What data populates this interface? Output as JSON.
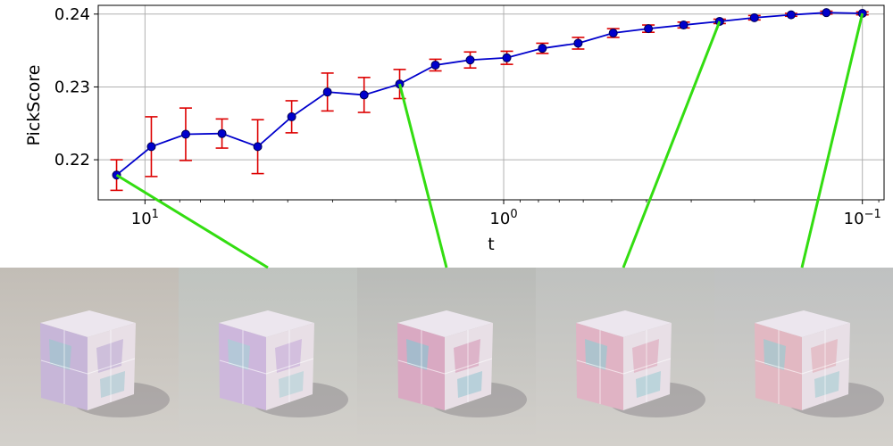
{
  "chart_data": {
    "type": "line",
    "title": "",
    "xlabel": "t",
    "ylabel": "PickScore",
    "x_scale": "log",
    "x_reversed": true,
    "xlim": [
      13.5,
      0.087
    ],
    "ylim": [
      0.2145,
      0.2412
    ],
    "grid": true,
    "x_ticks": [
      {
        "value": 10,
        "base": "10",
        "exp": "1"
      },
      {
        "value": 1,
        "base": "10",
        "exp": "0"
      },
      {
        "value": 0.1,
        "base": "10",
        "exp": "−1"
      }
    ],
    "y_ticks": [
      {
        "value": 0.22,
        "label": "0.22"
      },
      {
        "value": 0.23,
        "label": "0.23"
      },
      {
        "value": 0.24,
        "label": "0.24"
      }
    ],
    "series": [
      {
        "line_color": "#0000cc",
        "marker_color": "#0000cc",
        "marker_edge": "#000055",
        "error_color": "#dd0000",
        "x": [
          12.0,
          9.6,
          7.7,
          6.1,
          4.85,
          3.9,
          3.1,
          2.45,
          1.95,
          1.55,
          1.24,
          0.98,
          0.78,
          0.62,
          0.495,
          0.395,
          0.315,
          0.25,
          0.2,
          0.158,
          0.126,
          0.1
        ],
        "y": [
          0.2179,
          0.2218,
          0.2235,
          0.2236,
          0.2218,
          0.2259,
          0.2293,
          0.2289,
          0.2304,
          0.233,
          0.2337,
          0.234,
          0.2353,
          0.236,
          0.2374,
          0.238,
          0.2385,
          0.239,
          0.2395,
          0.2399,
          0.2402,
          0.2401
        ],
        "yerr": [
          0.0021,
          0.0041,
          0.0036,
          0.002,
          0.0037,
          0.0022,
          0.0026,
          0.0024,
          0.002,
          0.0008,
          0.0011,
          0.0009,
          0.0007,
          0.0008,
          0.0006,
          0.0005,
          0.0004,
          0.0003,
          0.0003,
          0.0002,
          0.0002,
          0.0002
        ]
      }
    ],
    "connector_color": "#33dd11",
    "connectors": [
      {
        "point_index": 0,
        "image_index": 0
      },
      {
        "point_index": 8,
        "image_index": 1
      },
      {
        "point_index": 17,
        "image_index": 2
      },
      {
        "point_index": 21,
        "image_index": 3
      }
    ]
  },
  "images": [
    {
      "name": "pastel-watercolor-cube-1",
      "bg": "#c2bdb6",
      "tint": "#c7b6d8",
      "accent": "#9fc6cf"
    },
    {
      "name": "pastel-watercolor-cube-2",
      "bg": "#bfc3bf",
      "tint": "#cdb7dc",
      "accent": "#a9cfd6"
    },
    {
      "name": "geometric-pastel-cube-3",
      "bg": "#b9bbb8",
      "tint": "#d9a9c2",
      "accent": "#8fc3d0"
    },
    {
      "name": "geometric-pastel-cube-4",
      "bg": "#bfc1bf",
      "tint": "#e0b3c4",
      "accent": "#97cbd2"
    },
    {
      "name": "geometric-pastel-cube-5",
      "bg": "#bfc1c1",
      "tint": "#e2b8c2",
      "accent": "#9dcbd0"
    }
  ]
}
